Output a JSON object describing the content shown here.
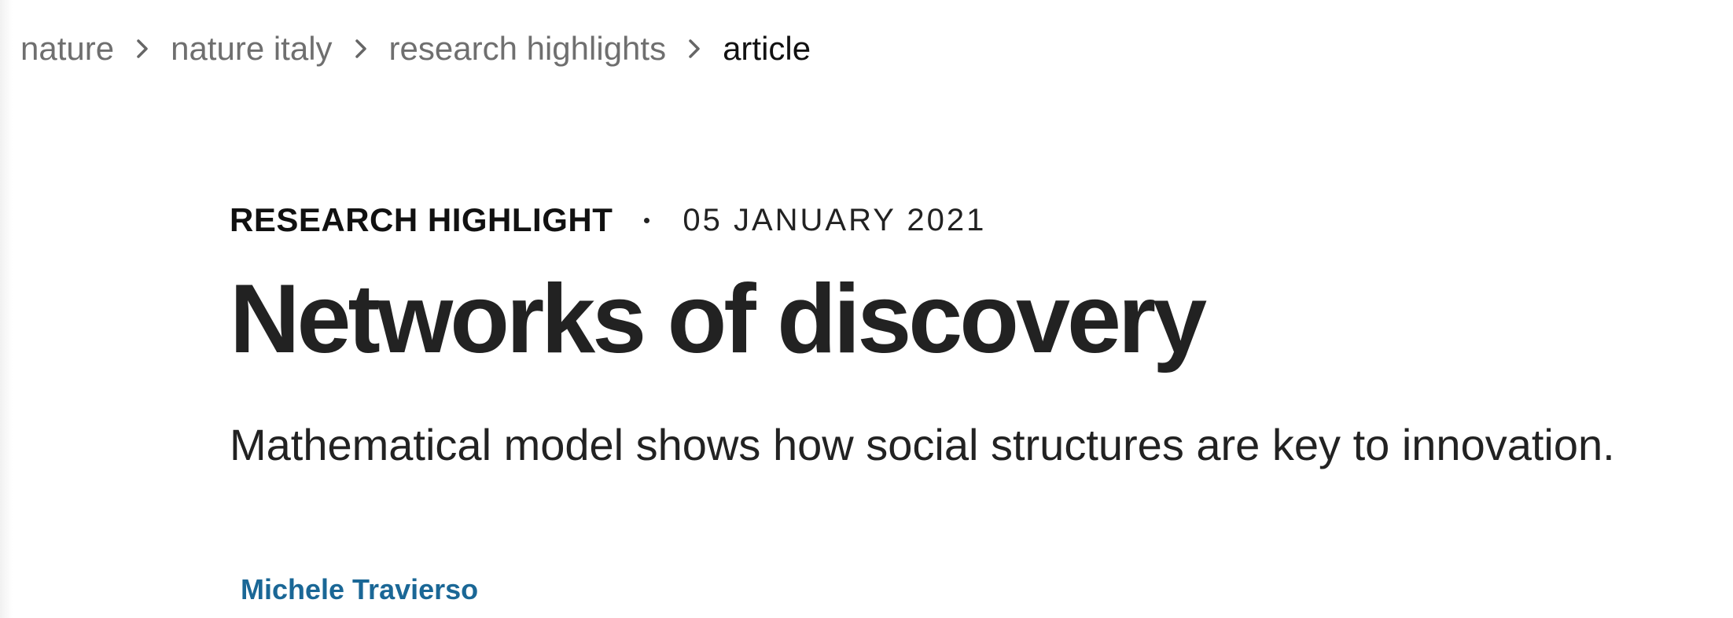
{
  "breadcrumb": {
    "items": [
      {
        "label": "nature"
      },
      {
        "label": "nature italy"
      },
      {
        "label": "research highlights"
      },
      {
        "label": "article"
      }
    ],
    "separator_icon": "chevron-right-icon"
  },
  "article": {
    "type": "RESEARCH HIGHLIGHT",
    "date": "05 JANUARY 2021",
    "title": "Networks of discovery",
    "standfirst": "Mathematical model shows how social structures are key to innovation.",
    "author": "Michele Travierso"
  },
  "colors": {
    "text": "#222222",
    "breadcrumb": "#6f6f6f",
    "author_link": "#1a6796"
  }
}
